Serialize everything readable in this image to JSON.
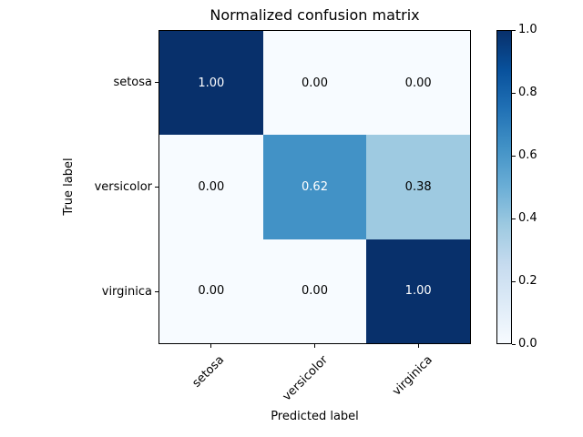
{
  "title": "Normalized confusion matrix",
  "chart_data": {
    "type": "heatmap",
    "title": "Normalized confusion matrix",
    "xlabel": "Predicted label",
    "ylabel": "True label",
    "x_categories": [
      "setosa",
      "versicolor",
      "virginica"
    ],
    "y_categories": [
      "setosa",
      "versicolor",
      "virginica"
    ],
    "values": [
      [
        1.0,
        0.0,
        0.0
      ],
      [
        0.0,
        0.62,
        0.38
      ],
      [
        0.0,
        0.0,
        1.0
      ]
    ],
    "cell_labels": [
      [
        "1.00",
        "0.00",
        "0.00"
      ],
      [
        "0.00",
        "0.62",
        "0.38"
      ],
      [
        "0.00",
        "0.00",
        "1.00"
      ]
    ],
    "cell_colors": [
      [
        "#08306b",
        "#f7fbff",
        "#f7fbff"
      ],
      [
        "#f7fbff",
        "#4292c6",
        "#9ecae1"
      ],
      [
        "#f7fbff",
        "#f7fbff",
        "#08306b"
      ]
    ],
    "cell_text_colors": [
      [
        "#ffffff",
        "#000000",
        "#000000"
      ],
      [
        "#000000",
        "#ffffff",
        "#000000"
      ],
      [
        "#000000",
        "#000000",
        "#ffffff"
      ]
    ],
    "colormap": "Blues",
    "grid": false,
    "colorbar": {
      "position": "right",
      "min": 0.0,
      "max": 1.0,
      "ticks": [
        "1.0",
        "0.8",
        "0.6",
        "0.4",
        "0.2",
        "0.0"
      ],
      "gradient_stops": [
        "#f7fbff",
        "#deebf7",
        "#c6dbef",
        "#9ecae1",
        "#6baed6",
        "#4292c6",
        "#2171b5",
        "#08519c",
        "#08306b"
      ]
    }
  },
  "colors": {
    "background": "#ffffff",
    "text": "#000000",
    "spine": "#000000"
  }
}
